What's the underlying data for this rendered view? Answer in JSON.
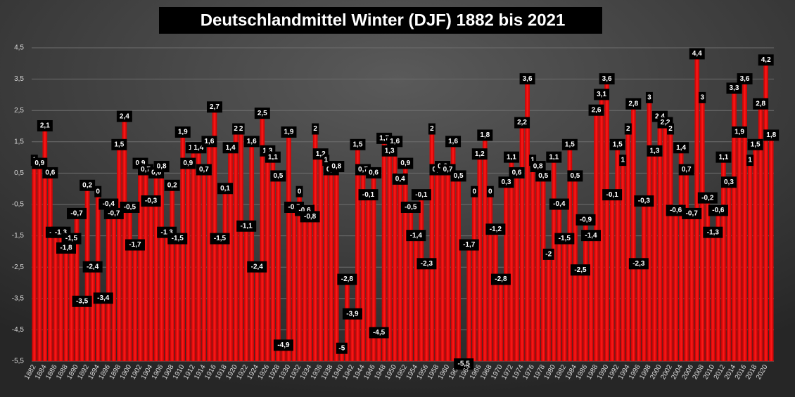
{
  "chart_data": {
    "type": "bar",
    "title": "Deutschlandmittel Winter (DJF) 1882 bis 2021",
    "categories": [
      "1882",
      null,
      "1884",
      null,
      "1886",
      null,
      "1888",
      null,
      "1890",
      null,
      "1892",
      null,
      "1894",
      null,
      "1896",
      null,
      "1898",
      null,
      "1900",
      null,
      "1902",
      null,
      "1904",
      null,
      "1906",
      null,
      "1908",
      null,
      "1910",
      null,
      "1912",
      null,
      "1914",
      null,
      "1916",
      null,
      "1918",
      null,
      "1920",
      null,
      "1922",
      null,
      "1924",
      null,
      "1926",
      null,
      "1928",
      null,
      "1930",
      null,
      "1932",
      null,
      "1934",
      null,
      "1936",
      null,
      "1938",
      null,
      "1940",
      null,
      "1942",
      null,
      "1944",
      null,
      "1946",
      null,
      "1948",
      null,
      "1950",
      null,
      "1952",
      null,
      "1954",
      null,
      "1956",
      null,
      "1958",
      null,
      "1960",
      null,
      "1962",
      null,
      "1964",
      null,
      "1966",
      null,
      "1968",
      null,
      "1970",
      null,
      "1972",
      null,
      "1974",
      null,
      "1976",
      null,
      "1978",
      null,
      "1980",
      null,
      "1982",
      null,
      "1984",
      null,
      "1986",
      null,
      "1988",
      null,
      "1990",
      null,
      "1992",
      null,
      "1994",
      null,
      "1996",
      null,
      "1998",
      null,
      "2000",
      null,
      "2002",
      null,
      "2004",
      null,
      "2006",
      null,
      "2008",
      null,
      "2010",
      null,
      "2012",
      null,
      "2014",
      null,
      "2016",
      null,
      "2018",
      null,
      "2020",
      null
    ],
    "values": [
      1,
      0.9,
      2.1,
      0.6,
      -1.3,
      -1.3,
      -1.8,
      -1.5,
      -0.7,
      -3.5,
      0.2,
      -2.4,
      0,
      -3.4,
      -0.4,
      -0.7,
      1.5,
      2.4,
      -0.5,
      -1.7,
      0.9,
      0.7,
      -0.3,
      0.6,
      0.8,
      -1.3,
      0.2,
      -1.5,
      1.9,
      0.9,
      1.4,
      1.4,
      0.7,
      1.6,
      2.7,
      -1.5,
      0.1,
      1.4,
      2,
      2,
      -1.1,
      1.6,
      -2.4,
      2.5,
      1.3,
      1.1,
      0.5,
      -4.9,
      1.9,
      -0.5,
      0,
      -0.6,
      -0.8,
      2,
      1.2,
      1,
      0.7,
      0.8,
      -5,
      -2.8,
      -3.9,
      1.5,
      0.7,
      -0.1,
      0.6,
      -4.5,
      1.7,
      1.3,
      1.6,
      0.4,
      0.9,
      -0.5,
      -1.4,
      -0.1,
      -2.3,
      2,
      0.7,
      0.8,
      0.7,
      1.6,
      0.5,
      -5.5,
      -1.7,
      0,
      1.2,
      1.8,
      0,
      -1.2,
      -2.8,
      0.3,
      1.1,
      0.6,
      2.2,
      3.6,
      1,
      0.8,
      0.5,
      -2,
      1.1,
      -0.4,
      -1.5,
      1.5,
      0.5,
      -2.5,
      -0.9,
      -1.4,
      2.6,
      3.1,
      3.6,
      -0.1,
      1.5,
      1,
      2,
      2.8,
      -2.3,
      -0.3,
      3,
      1.3,
      2.4,
      2.2,
      2,
      -0.6,
      1.4,
      0.7,
      -0.7,
      4.4,
      3,
      -0.2,
      -1.3,
      -0.6,
      1.1,
      0.3,
      3.3,
      1.9,
      3.6,
      1,
      1.5,
      2.8,
      4.2,
      1.8
    ],
    "value_labels": [
      "1",
      "0,9",
      "2,1",
      "0,6",
      "-1,3",
      "-1,3",
      "-1,8",
      "-1,5",
      "-0,7",
      "-3,5",
      "0,2",
      "-2,4",
      "0",
      "-3,4",
      "-0,4",
      "-0,7",
      "1,5",
      "2,4",
      "-0,5",
      "-1,7",
      "0,9",
      "0,7",
      "-0,3",
      "0,6",
      "0,8",
      "-1,3",
      "0,2",
      "-1,5",
      "1,9",
      "0,9",
      "1,4",
      "1,4",
      "0,7",
      "1,6",
      "2,7",
      "-1,5",
      "0,1",
      "1,4",
      "2",
      "2",
      "-1,1",
      "1,6",
      "-2,4",
      "2,5",
      "1,3",
      "1,1",
      "0,5",
      "-4,9",
      "1,9",
      "-0,5",
      "0",
      "-0,6",
      "-0,8",
      "2",
      "1,2",
      "1",
      "0,7",
      "0,8",
      "-5",
      "-2,8",
      "-3,9",
      "1,5",
      "0,7",
      "-0,1",
      "0,6",
      "-4,5",
      "1,7",
      "1,3",
      "1,6",
      "0,4",
      "0,9",
      "-0,5",
      "-1,4",
      "-0,1",
      "-2,3",
      "2",
      "0,7",
      "0,8",
      "0,7",
      "1,6",
      "0,5",
      "-5,5",
      "-1,7",
      "0",
      "1,2",
      "1,8",
      "0",
      "-1,2",
      "-2,8",
      "0,3",
      "1,1",
      "0,6",
      "2,2",
      "3,6",
      "1",
      "0,8",
      "0,5",
      "-2",
      "1,1",
      "-0,4",
      "-1,5",
      "1,5",
      "0,5",
      "-2,5",
      "-0,9",
      "-1,4",
      "2,6",
      "3,1",
      "3,6",
      "-0,1",
      "1,5",
      "1",
      "2",
      "2,8",
      "-2,3",
      "-0,3",
      "3",
      "1,3",
      "2,4",
      "2,2",
      "2",
      "-0,6",
      "1,4",
      "0,7",
      "-0,7",
      "4,4",
      "3",
      "-0,2",
      "-1,3",
      "-0,6",
      "1,1",
      "0,3",
      "3,3",
      "1,9",
      "3,6",
      "1",
      "1,5",
      "2,8",
      "4,2",
      "1,8"
    ],
    "color": "#ff0000",
    "ylim": [
      -5.5,
      4.5
    ],
    "yticks": [
      {
        "value": -5.5,
        "label": "-5,5"
      },
      {
        "value": -4.5,
        "label": "-4,5"
      },
      {
        "value": -3.5,
        "label": "-3,5"
      },
      {
        "value": -2.5,
        "label": "-2,5"
      },
      {
        "value": -1.5,
        "label": "-1,5"
      },
      {
        "value": -0.5,
        "label": "-0,5"
      },
      {
        "value": 0.5,
        "label": "0,5"
      },
      {
        "value": 1.5,
        "label": "1,5"
      },
      {
        "value": 2.5,
        "label": "2,5"
      },
      {
        "value": 3.5,
        "label": "3,5"
      },
      {
        "value": 4.5,
        "label": "4,5"
      }
    ],
    "grid": true
  }
}
